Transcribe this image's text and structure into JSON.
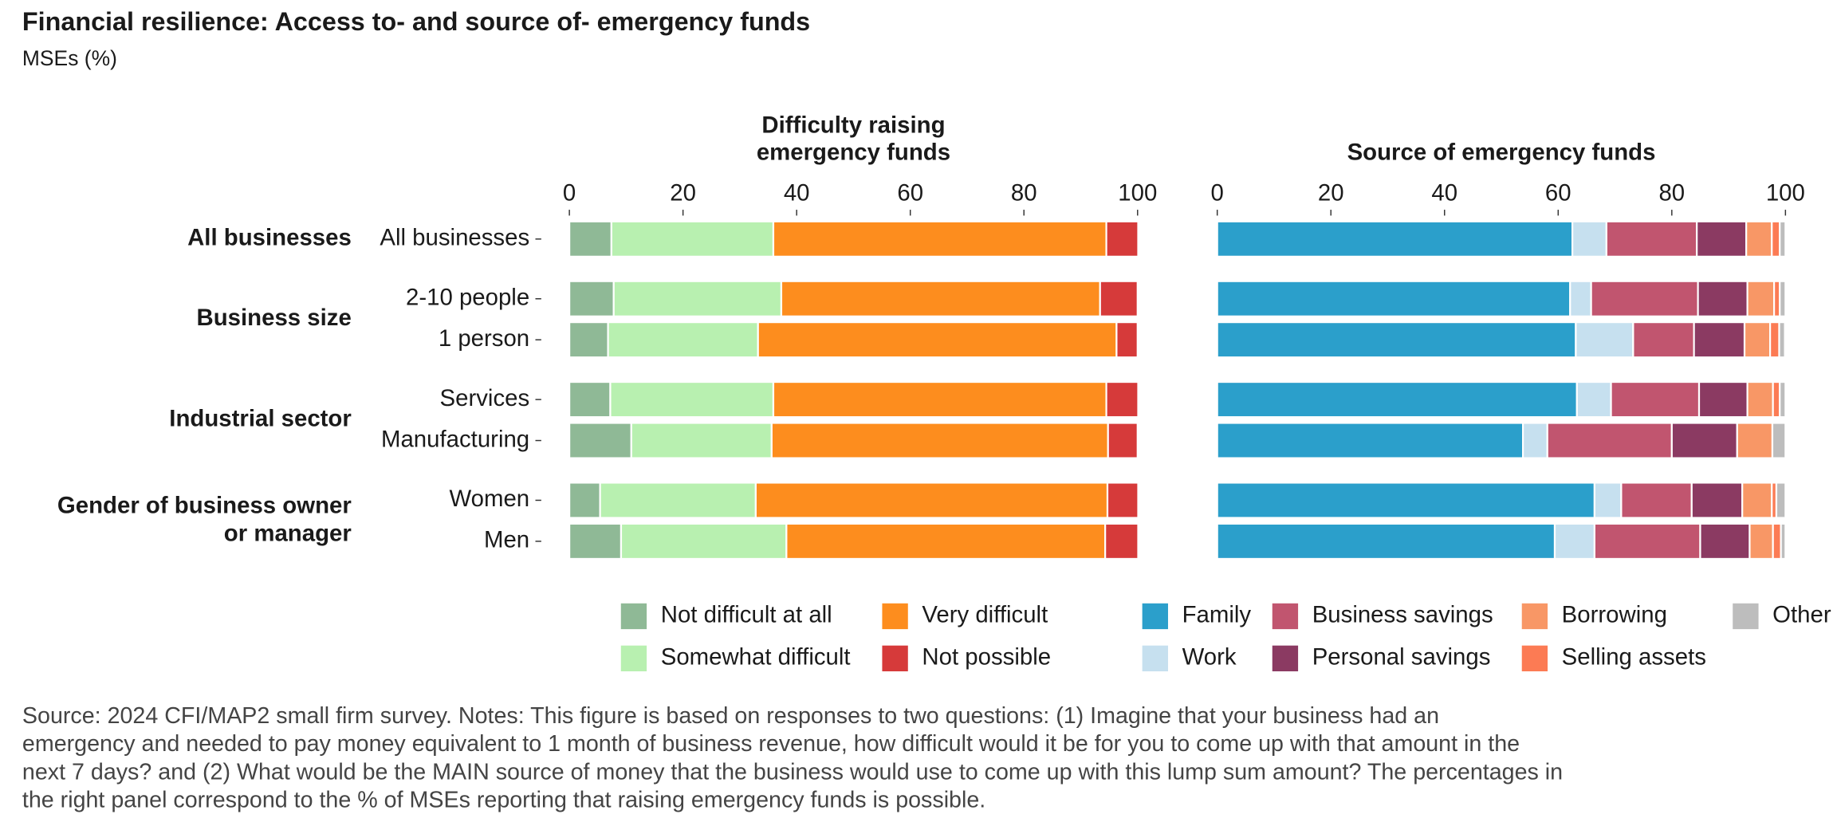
{
  "title": "Financial resilience: Access to- and source of- emergency funds",
  "subtitle": "MSEs (%)",
  "footer_lines": [
    "Source: 2024 CFI/MAP2 small firm survey. Notes: This figure is based on responses to two questions: (1) Imagine that your business had an",
    "emergency and needed to pay money equivalent to 1 month of business revenue, how difficult would it be for you to come up with that amount in the",
    "next 7 days? and (2) What would be the MAIN source of money that the business would use to come up with this lump sum amount? The percentages in",
    "the right panel correspond to the % of MSEs reporting that raising emergency funds is possible."
  ],
  "chart_data": [
    {
      "type": "stacked-barh",
      "title_lines": [
        "Difficulty raising",
        "emergency funds"
      ],
      "groups": [
        {
          "label_lines": [
            "All businesses"
          ],
          "categories": [
            "All businesses"
          ]
        },
        {
          "label_lines": [
            "Business size"
          ],
          "categories": [
            "2-10 people",
            "1 person"
          ]
        },
        {
          "label_lines": [
            "Industrial sector"
          ],
          "categories": [
            "Services",
            "Manufacturing"
          ]
        },
        {
          "label_lines": [
            "Gender of business owner",
            "or manager"
          ],
          "categories": [
            "Women",
            "Men"
          ]
        }
      ],
      "xlim": [
        0,
        100
      ],
      "xticks": [
        0,
        20,
        40,
        60,
        80,
        100
      ],
      "series": [
        {
          "name": "Not difficult at all",
          "color": "#8fb996",
          "values": [
            7.4,
            7.8,
            6.8,
            7.2,
            10.9,
            5.4,
            9.1
          ]
        },
        {
          "name": "Somewhat difficult",
          "color": "#b8f0b0",
          "values": [
            28.5,
            29.5,
            26.4,
            28.7,
            24.7,
            27.4,
            29.1
          ]
        },
        {
          "name": "Very difficult",
          "color": "#fd8d1e",
          "values": [
            58.6,
            56.1,
            63.1,
            58.6,
            59.2,
            61.9,
            56.1
          ]
        },
        {
          "name": "Not possible",
          "color": "#d63a3a",
          "values": [
            5.6,
            6.6,
            3.7,
            5.6,
            5.2,
            5.4,
            5.8
          ]
        }
      ]
    },
    {
      "type": "stacked-barh",
      "title_lines": [
        "Source of emergency funds"
      ],
      "xlim": [
        0,
        100
      ],
      "xticks": [
        0,
        20,
        40,
        60,
        80,
        100
      ],
      "series": [
        {
          "name": "Family",
          "color": "#2b9fcb",
          "values": [
            62.5,
            62.1,
            63.1,
            63.3,
            53.8,
            66.4,
            59.4
          ]
        },
        {
          "name": "Work",
          "color": "#c6e0ef",
          "values": [
            6.0,
            3.7,
            10.1,
            6.0,
            4.3,
            4.7,
            7.0
          ]
        },
        {
          "name": "Business savings",
          "color": "#c1556f",
          "values": [
            15.9,
            18.8,
            10.7,
            15.5,
            21.9,
            12.4,
            18.6
          ]
        },
        {
          "name": "Personal savings",
          "color": "#8b3a62",
          "values": [
            8.7,
            8.7,
            8.9,
            8.5,
            11.5,
            8.9,
            8.7
          ]
        },
        {
          "name": "Borrowing",
          "color": "#f89766",
          "values": [
            4.5,
            4.7,
            4.5,
            4.5,
            6.2,
            5.2,
            4.1
          ]
        },
        {
          "name": "Selling assets",
          "color": "#fc7b54",
          "values": [
            1.4,
            1.0,
            1.6,
            1.2,
            0,
            0.8,
            1.4
          ]
        },
        {
          "name": "Other",
          "color": "#bdbdbd",
          "values": [
            1.0,
            1.0,
            1.0,
            1.0,
            2.3,
            1.6,
            0.8
          ]
        }
      ]
    }
  ]
}
